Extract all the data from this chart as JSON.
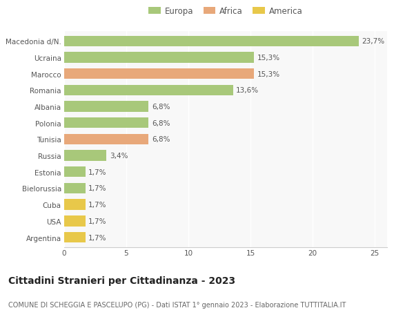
{
  "categories": [
    "Macedonia d/N.",
    "Ucraina",
    "Marocco",
    "Romania",
    "Albania",
    "Polonia",
    "Tunisia",
    "Russia",
    "Estonia",
    "Bielorussia",
    "Cuba",
    "USA",
    "Argentina"
  ],
  "values": [
    23.7,
    15.3,
    15.3,
    13.6,
    6.8,
    6.8,
    6.8,
    3.4,
    1.7,
    1.7,
    1.7,
    1.7,
    1.7
  ],
  "labels": [
    "23,7%",
    "15,3%",
    "15,3%",
    "13,6%",
    "6,8%",
    "6,8%",
    "6,8%",
    "3,4%",
    "1,7%",
    "1,7%",
    "1,7%",
    "1,7%",
    "1,7%"
  ],
  "continents": [
    "Europa",
    "Europa",
    "Africa",
    "Europa",
    "Europa",
    "Europa",
    "Africa",
    "Europa",
    "Europa",
    "Europa",
    "America",
    "America",
    "America"
  ],
  "colors": {
    "Europa": "#a8c87a",
    "Africa": "#e8a87a",
    "America": "#e8c84a"
  },
  "xlim": [
    0,
    26
  ],
  "xticks": [
    0,
    5,
    10,
    15,
    20,
    25
  ],
  "title": "Cittadini Stranieri per Cittadinanza - 2023",
  "subtitle": "COMUNE DI SCHEGGIA E PASCELUPO (PG) - Dati ISTAT 1° gennaio 2023 - Elaborazione TUTTITALIA.IT",
  "background_color": "#ffffff",
  "plot_bg_color": "#f8f8f8",
  "grid_color": "#ffffff",
  "bar_height": 0.65,
  "label_fontsize": 7.5,
  "title_fontsize": 10,
  "subtitle_fontsize": 7,
  "tick_fontsize": 7.5,
  "legend_fontsize": 8.5
}
